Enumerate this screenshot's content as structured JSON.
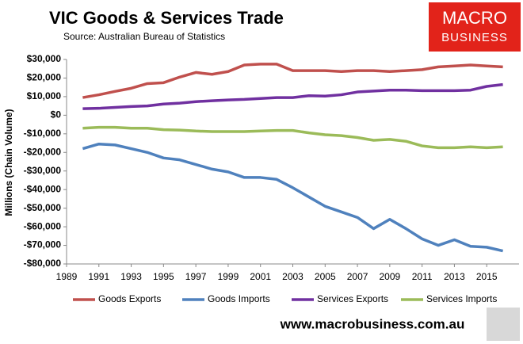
{
  "chart_data": {
    "type": "line",
    "title": "VIC Goods & Services Trade",
    "subtitle": "Source:  Australian Bureau of Statistics",
    "logo": [
      "MACRO",
      "BUSINESS"
    ],
    "footer": "www.macrobusiness.com.au",
    "y_label": "Millions (Chain Volume)",
    "x": [
      1990,
      1991,
      1992,
      1993,
      1994,
      1995,
      1996,
      1997,
      1998,
      1999,
      2000,
      2001,
      2002,
      2003,
      2004,
      2005,
      2006,
      2007,
      2008,
      2009,
      2010,
      2011,
      2012,
      2013,
      2014,
      2015,
      2016
    ],
    "xlim": [
      1989,
      2017
    ],
    "xticks": [
      1989,
      1991,
      1993,
      1995,
      1997,
      1999,
      2001,
      2003,
      2005,
      2007,
      2009,
      2011,
      2013,
      2015
    ],
    "ylim": [
      -80000,
      30000
    ],
    "yticks": [
      {
        "value": -80000,
        "label": "-$80,000"
      },
      {
        "value": -70000,
        "label": "-$70,000"
      },
      {
        "value": -60000,
        "label": "-$60,000"
      },
      {
        "value": -50000,
        "label": "-$50,000"
      },
      {
        "value": -40000,
        "label": "-$40,000"
      },
      {
        "value": -30000,
        "label": "-$30,000"
      },
      {
        "value": -20000,
        "label": "-$20,000"
      },
      {
        "value": -10000,
        "label": "-$10,000"
      },
      {
        "value": 0,
        "label": "$0"
      },
      {
        "value": 10000,
        "label": "$10,000"
      },
      {
        "value": 20000,
        "label": "$20,000"
      },
      {
        "value": 30000,
        "label": "$30,000"
      }
    ],
    "grid": false,
    "series": [
      {
        "name": "Goods Exports",
        "color": "#c0504d",
        "values": [
          9500,
          11000,
          12800,
          14500,
          17000,
          17500,
          20500,
          23000,
          22000,
          23500,
          27000,
          27500,
          27500,
          24000,
          24000,
          24000,
          23500,
          24000,
          24000,
          23500,
          24000,
          24500,
          26000,
          26500,
          27000,
          26500,
          26000
        ]
      },
      {
        "name": "Goods Imports",
        "color": "#4f81bd",
        "values": [
          -18000,
          -15500,
          -16000,
          -18000,
          -20000,
          -23000,
          -24000,
          -26500,
          -29000,
          -30500,
          -33500,
          -33500,
          -34500,
          -39000,
          -44000,
          -49000,
          -52000,
          -55000,
          -61000,
          -56000,
          -61000,
          -66500,
          -70000,
          -67000,
          -70500,
          -71000,
          -73000
        ]
      },
      {
        "name": "Services Exports",
        "color": "#7030a0",
        "values": [
          3500,
          3700,
          4200,
          4700,
          5000,
          6000,
          6500,
          7300,
          7800,
          8200,
          8500,
          9000,
          9500,
          9500,
          10500,
          10300,
          11000,
          12500,
          13000,
          13500,
          13500,
          13200,
          13200,
          13200,
          13500,
          15500,
          16500
        ]
      },
      {
        "name": "Services Imports",
        "color": "#9bbb59",
        "values": [
          -7000,
          -6500,
          -6500,
          -7000,
          -7000,
          -7800,
          -8000,
          -8500,
          -8800,
          -8800,
          -8800,
          -8500,
          -8200,
          -8200,
          -9500,
          -10500,
          -11000,
          -12000,
          -13500,
          -13000,
          -14000,
          -16500,
          -17500,
          -17500,
          -17000,
          -17500,
          -17000
        ]
      }
    ]
  }
}
